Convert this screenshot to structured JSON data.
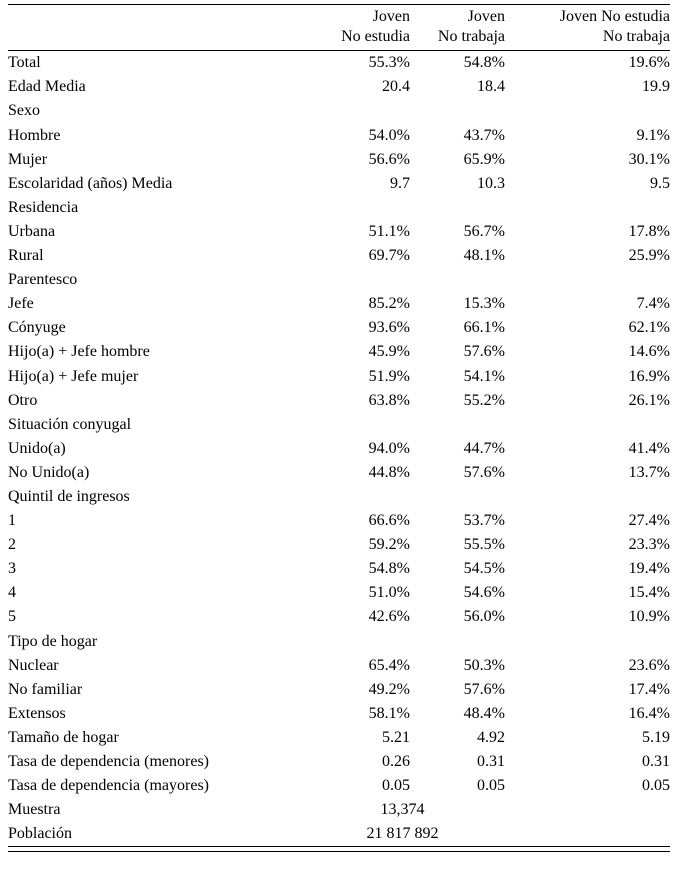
{
  "chart_data": {
    "type": "table",
    "columns": [
      {
        "line1": "Joven",
        "line2": "No estudia"
      },
      {
        "line1": "Joven",
        "line2": "No trabaja"
      },
      {
        "line1": "Joven No estudia",
        "line2": "No trabaja"
      }
    ],
    "rows": [
      {
        "label": "Total",
        "values": [
          "55.3%",
          "54.8%",
          "19.6%"
        ]
      },
      {
        "label": "Edad Media",
        "values": [
          "20.4",
          "18.4",
          "19.9"
        ]
      },
      {
        "label": "Sexo",
        "section": true
      },
      {
        "label": "Hombre",
        "values": [
          "54.0%",
          "43.7%",
          "9.1%"
        ]
      },
      {
        "label": "Mujer",
        "values": [
          "56.6%",
          "65.9%",
          "30.1%"
        ]
      },
      {
        "label": "Escolaridad (años) Media",
        "values": [
          "9.7",
          "10.3",
          "9.5"
        ]
      },
      {
        "label": "Residencia",
        "section": true
      },
      {
        "label": "Urbana",
        "values": [
          "51.1%",
          "56.7%",
          "17.8%"
        ]
      },
      {
        "label": "Rural",
        "values": [
          "69.7%",
          "48.1%",
          "25.9%"
        ]
      },
      {
        "label": "Parentesco",
        "section": true
      },
      {
        "label": "Jefe",
        "values": [
          "85.2%",
          "15.3%",
          "7.4%"
        ]
      },
      {
        "label": "Cónyuge",
        "values": [
          "93.6%",
          "66.1%",
          "62.1%"
        ]
      },
      {
        "label": "Hijo(a) + Jefe hombre",
        "values": [
          "45.9%",
          "57.6%",
          "14.6%"
        ]
      },
      {
        "label": "Hijo(a) + Jefe mujer",
        "values": [
          "51.9%",
          "54.1%",
          "16.9%"
        ]
      },
      {
        "label": "Otro",
        "values": [
          "63.8%",
          "55.2%",
          "26.1%"
        ]
      },
      {
        "label": "Situación conyugal",
        "section": true
      },
      {
        "label": "Unido(a)",
        "values": [
          "94.0%",
          "44.7%",
          "41.4%"
        ]
      },
      {
        "label": "No Unido(a)",
        "values": [
          "44.8%",
          "57.6%",
          "13.7%"
        ]
      },
      {
        "label": "Quintil de ingresos",
        "section": true
      },
      {
        "label": "1",
        "values": [
          "66.6%",
          "53.7%",
          "27.4%"
        ]
      },
      {
        "label": "2",
        "values": [
          "59.2%",
          "55.5%",
          "23.3%"
        ]
      },
      {
        "label": "3",
        "values": [
          "54.8%",
          "54.5%",
          "19.4%"
        ]
      },
      {
        "label": "4",
        "values": [
          "51.0%",
          "54.6%",
          "15.4%"
        ]
      },
      {
        "label": "5",
        "values": [
          "42.6%",
          "56.0%",
          "10.9%"
        ]
      },
      {
        "label": "Tipo de hogar",
        "section": true
      },
      {
        "label": "Nuclear",
        "values": [
          "65.4%",
          "50.3%",
          "23.6%"
        ]
      },
      {
        "label": "No familiar",
        "values": [
          "49.2%",
          "57.6%",
          "17.4%"
        ]
      },
      {
        "label": "Extensos",
        "values": [
          "58.1%",
          "48.4%",
          "16.4%"
        ]
      },
      {
        "label": "Tamaño de hogar",
        "values": [
          "5.21",
          "4.92",
          "5.19"
        ]
      },
      {
        "label": "Tasa de dependencia (menores)",
        "values": [
          "0.26",
          "0.31",
          "0.31"
        ]
      },
      {
        "label": "Tasa de dependencia (mayores)",
        "values": [
          "0.05",
          "0.05",
          "0.05"
        ]
      },
      {
        "label": "Muestra",
        "span_value": "13,374"
      },
      {
        "label": "Población",
        "span_value": "21 817 892"
      }
    ]
  }
}
